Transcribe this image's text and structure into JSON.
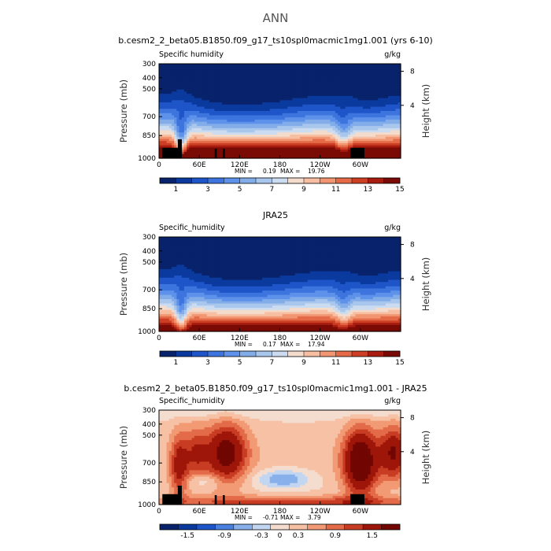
{
  "figure": {
    "suptitle": "ANN"
  },
  "colors": {
    "seq": [
      "#08236b",
      "#0b3a9e",
      "#1e55c8",
      "#3d74de",
      "#5e92ea",
      "#83ade8",
      "#a9c6ec",
      "#cbdcf0",
      "#f4dccd",
      "#f7bea2",
      "#f29672",
      "#e46a48",
      "#cc3f24",
      "#a81d10",
      "#7a0a05"
    ],
    "div": [
      "#08236b",
      "#0b3a9e",
      "#1e55c8",
      "#4a80e0",
      "#88b0ea",
      "#c3d6f1",
      "#f4ddcf",
      "#f6c1a5",
      "#f29a74",
      "#e36b49",
      "#c73c22",
      "#9e1609",
      "#710603"
    ]
  },
  "chart_data": [
    {
      "type": "heatmap",
      "id": "model",
      "title": "b.cesm2_2_beta05.B1850.f09_g17_ts10spl0macmic1mg1.001 (yrs 6-10)",
      "left_label": "Specific humidity",
      "units": "g/kg",
      "ylabel": "Pressure (mb)",
      "y2label": "Height (km)",
      "yticks": [
        "300",
        "400",
        "500",
        "700",
        "850",
        "1000"
      ],
      "y2ticks": [
        "8",
        "4"
      ],
      "xticks": [
        "0",
        "60E",
        "120E",
        "180",
        "120W",
        "60W"
      ],
      "xlim": [
        0,
        360
      ],
      "ylim": [
        1000,
        300
      ],
      "min_label": "MIN =",
      "min": "0.19",
      "max_label": "MAX =",
      "max": "19.76",
      "colorbar_labels": [
        "1",
        "3",
        "5",
        "7",
        "9",
        "11",
        "13",
        "15"
      ],
      "colorbar_levels": [
        0.5,
        1,
        2,
        3,
        4,
        5,
        6,
        7,
        8,
        9,
        10,
        11,
        12,
        13,
        14,
        15,
        16
      ]
    },
    {
      "type": "heatmap",
      "id": "obs",
      "title": "JRA25",
      "left_label": "Specific_humidity",
      "units": "g/kg",
      "ylabel": "Pressure (mb)",
      "y2label": "Height (km)",
      "yticks": [
        "300",
        "400",
        "500",
        "700",
        "850",
        "1000"
      ],
      "y2ticks": [
        "8",
        "4"
      ],
      "xticks": [
        "0",
        "60E",
        "120E",
        "180",
        "120W",
        "60W"
      ],
      "xlim": [
        0,
        360
      ],
      "ylim": [
        1000,
        300
      ],
      "min_label": "MIN =",
      "min": "0.17",
      "max_label": "MAX =",
      "max": "17.94",
      "colorbar_labels": [
        "1",
        "3",
        "5",
        "7",
        "9",
        "11",
        "13",
        "15"
      ],
      "colorbar_levels": [
        0.5,
        1,
        2,
        3,
        4,
        5,
        6,
        7,
        8,
        9,
        10,
        11,
        12,
        13,
        14,
        15,
        16
      ]
    },
    {
      "type": "heatmap",
      "id": "diff",
      "title": "b.cesm2_2_beta05.B1850.f09_g17_ts10spl0macmic1mg1.001 - JRA25",
      "left_label": "Specific_humidity",
      "units": "g/kg",
      "ylabel": "Pressure (mb)",
      "y2label": "Height (km)",
      "yticks": [
        "300",
        "400",
        "500",
        "700",
        "850",
        "1000"
      ],
      "y2ticks": [
        "8",
        "4"
      ],
      "xticks": [
        "0",
        "60E",
        "120E",
        "180",
        "120W",
        "60W"
      ],
      "xlim": [
        0,
        360
      ],
      "ylim": [
        1000,
        300
      ],
      "min_label": "MIN =",
      "min": "-0.71",
      "max_label": "MAX =",
      "max": "3.79",
      "colorbar_labels": [
        "-1.5",
        "-0.9",
        "-0.3",
        "0",
        "0.3",
        "0.9",
        "1.5"
      ],
      "colorbar_levels": [
        -2,
        -1.5,
        -1.2,
        -0.9,
        -0.6,
        -0.3,
        0,
        0.3,
        0.6,
        0.9,
        1.2,
        1.5,
        2
      ]
    }
  ]
}
